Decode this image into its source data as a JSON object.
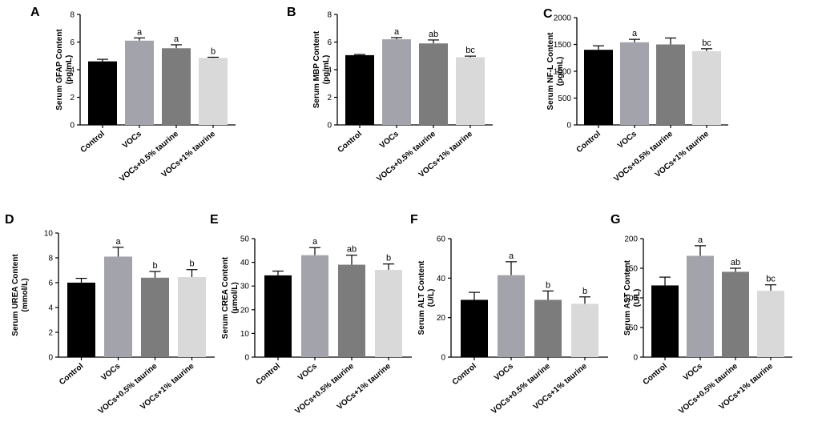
{
  "figure": {
    "categories": [
      "Control",
      "VOCs",
      "VOCs+0.5% taurine",
      "VOCs+1% taurine"
    ],
    "colors": [
      "#000000",
      "#a3a3ab",
      "#7c7c7c",
      "#d9d9d9"
    ]
  },
  "chart_data": [
    {
      "type": "bar",
      "panel": "A",
      "ylabel": [
        "Serum GFAP Content",
        "(pg/mL)"
      ],
      "categories": [
        "Control",
        "VOCs",
        "VOCs+0.5% taurine",
        "VOCs+1% taurine"
      ],
      "values": [
        4.6,
        6.1,
        5.55,
        4.85
      ],
      "errors": [
        0.15,
        0.2,
        0.25,
        0.05
      ],
      "labels": [
        "",
        "a",
        "a",
        "b"
      ],
      "ylim": [
        0,
        8
      ],
      "yticks": [
        "0",
        "2",
        "4",
        "6",
        "8"
      ],
      "tickvals": [
        0,
        2,
        4,
        6,
        8
      ]
    },
    {
      "type": "bar",
      "panel": "B",
      "ylabel": [
        "Serum MBP Content",
        "(pg/mL)"
      ],
      "categories": [
        "Control",
        "VOCs",
        "VOCs+0.5% taurine",
        "VOCs+1% taurine"
      ],
      "values": [
        5.05,
        6.2,
        5.9,
        4.9
      ],
      "errors": [
        0.05,
        0.12,
        0.25,
        0.08
      ],
      "labels": [
        "",
        "a",
        "ab",
        "bc"
      ],
      "ylim": [
        0,
        8
      ],
      "yticks": [
        "0",
        "2",
        "4",
        "6",
        "8"
      ],
      "tickvals": [
        0,
        2,
        4,
        6,
        8
      ]
    },
    {
      "type": "bar",
      "panel": "C",
      "ylabel": [
        "Serum NF-L Content",
        "(pg/mL)"
      ],
      "categories": [
        "Control",
        "VOCs",
        "VOCs+0.5% taurine",
        "VOCs+1% taurine"
      ],
      "values": [
        1400,
        1540,
        1500,
        1375
      ],
      "errors": [
        75,
        55,
        120,
        45
      ],
      "labels": [
        "",
        "a",
        "",
        "bc"
      ],
      "ylim": [
        0,
        2000
      ],
      "yticks": [
        "0",
        "500",
        "1000",
        "1500",
        "2000"
      ],
      "tickvals": [
        0,
        500,
        1000,
        1500,
        2000
      ]
    },
    {
      "type": "bar",
      "panel": "D",
      "ylabel": [
        "Serum UREA Content",
        "(mmol/L)"
      ],
      "categories": [
        "Control",
        "VOCs",
        "VOCs+0.5% taurine",
        "VOCs+1% taurine"
      ],
      "values": [
        6.0,
        8.1,
        6.4,
        6.45
      ],
      "errors": [
        0.35,
        0.75,
        0.5,
        0.6
      ],
      "labels": [
        "",
        "a",
        "b",
        "b"
      ],
      "ylim": [
        0,
        10
      ],
      "yticks": [
        "0",
        "2",
        "4",
        "6",
        "8",
        "10"
      ],
      "tickvals": [
        0,
        2,
        4,
        6,
        8,
        10
      ]
    },
    {
      "type": "bar",
      "panel": "E",
      "ylabel": [
        "Serum CREA Content",
        "(μmol/L)"
      ],
      "categories": [
        "Control",
        "VOCs",
        "VOCs+0.5% taurine",
        "VOCs+1% taurine"
      ],
      "values": [
        34.5,
        43,
        39,
        36.8
      ],
      "errors": [
        1.8,
        3.2,
        4.0,
        2.5
      ],
      "labels": [
        "",
        "a",
        "ab",
        "b"
      ],
      "ylim": [
        0,
        50
      ],
      "yticks": [
        "0",
        "10",
        "20",
        "30",
        "40",
        "50"
      ],
      "tickvals": [
        0,
        10,
        20,
        30,
        40,
        50
      ]
    },
    {
      "type": "bar",
      "panel": "F",
      "ylabel": [
        "Serum ALT Content",
        "(U/L)"
      ],
      "categories": [
        "Control",
        "VOCs",
        "VOCs+0.5% taurine",
        "VOCs+1% taurine"
      ],
      "values": [
        29,
        41.5,
        29,
        27
      ],
      "errors": [
        3.8,
        6.8,
        4.5,
        3.5
      ],
      "labels": [
        "",
        "a",
        "b",
        "b"
      ],
      "ylim": [
        0,
        60
      ],
      "yticks": [
        "0",
        "20",
        "40",
        "60"
      ],
      "tickvals": [
        0,
        20,
        40,
        60
      ]
    },
    {
      "type": "bar",
      "panel": "G",
      "ylabel": [
        "Serum AST Content",
        "(U/L)"
      ],
      "categories": [
        "Control",
        "VOCs",
        "VOCs+0.5% taurine",
        "VOCs+1% taurine"
      ],
      "values": [
        121,
        171,
        144,
        112
      ],
      "errors": [
        14,
        17,
        6,
        10
      ],
      "labels": [
        "",
        "a",
        "ab",
        "bc"
      ],
      "ylim": [
        0,
        200
      ],
      "yticks": [
        "0",
        "50",
        "100",
        "150",
        "200"
      ],
      "tickvals": [
        0,
        50,
        100,
        150,
        200
      ]
    }
  ]
}
